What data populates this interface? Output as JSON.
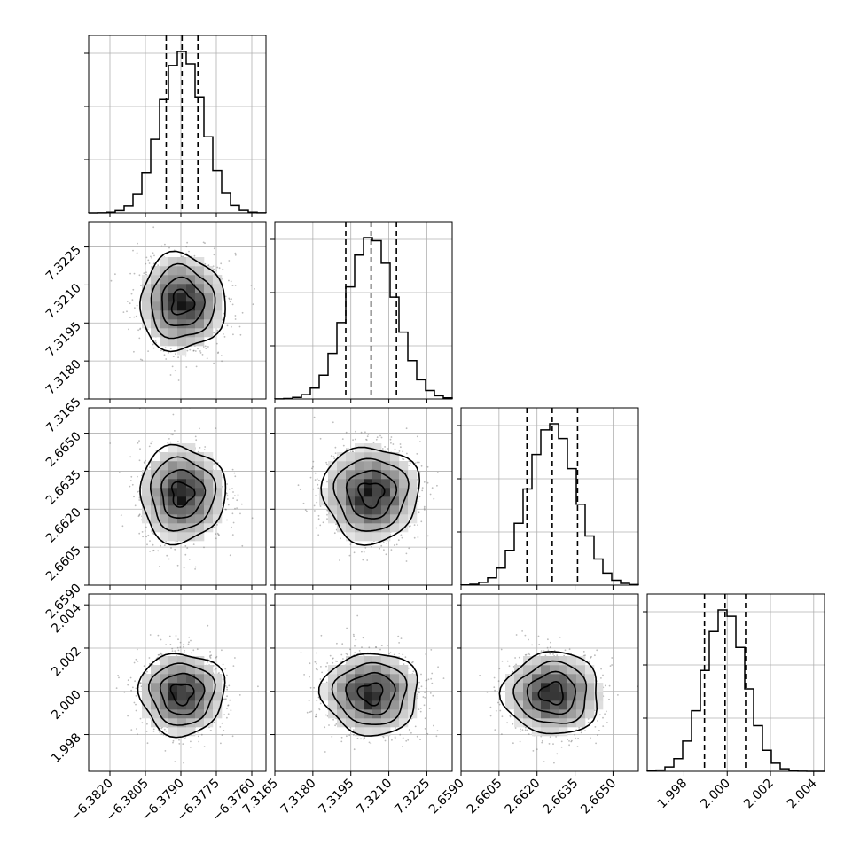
{
  "chart_data": {
    "type": "corner",
    "parameters": [
      {
        "mean": -6.37895,
        "sigma": 0.0009,
        "range": [
          -6.3829,
          -6.3754
        ],
        "ticks": [
          -6.382,
          -6.3805,
          -6.379,
          -6.3775,
          -6.376
        ],
        "tick_labels": [
          "−6.3820",
          "−6.3805",
          "−6.3790",
          "−6.3775",
          "−6.3760"
        ],
        "quantiles": [
          -6.37962,
          -6.37895,
          -6.37828
        ]
      },
      {
        "mean": 7.3203,
        "sigma": 0.00095,
        "range": [
          7.3165,
          7.3235
        ],
        "ticks": [
          7.3165,
          7.318,
          7.3195,
          7.321,
          7.3225
        ],
        "tick_labels": [
          "7.3165",
          "7.3180",
          "7.3195",
          "7.3210",
          "7.3225"
        ],
        "quantiles": [
          7.3193,
          7.3203,
          7.3213
        ]
      },
      {
        "mean": 2.6626,
        "sigma": 0.00095,
        "range": [
          2.659,
          2.666
        ],
        "ticks": [
          2.659,
          2.6605,
          2.662,
          2.6635,
          2.665
        ],
        "tick_labels": [
          "2.6590",
          "2.6605",
          "2.6620",
          "2.6635",
          "2.6650"
        ],
        "quantiles": [
          2.6616,
          2.6626,
          2.6636
        ]
      },
      {
        "mean": 1.9999,
        "sigma": 0.00095,
        "range": [
          1.9963,
          2.0045
        ],
        "ticks": [
          1.998,
          2.0,
          2.002,
          2.004
        ],
        "tick_labels": [
          "1.998",
          "2.000",
          "2.002",
          "2.004"
        ],
        "quantiles": [
          1.99895,
          1.9999,
          2.00085
        ]
      }
    ],
    "histogram_bins": 20,
    "contour_levels": [
      "0.5 sigma",
      "1 sigma",
      "1.5 sigma",
      "2 sigma"
    ],
    "grid": true
  }
}
